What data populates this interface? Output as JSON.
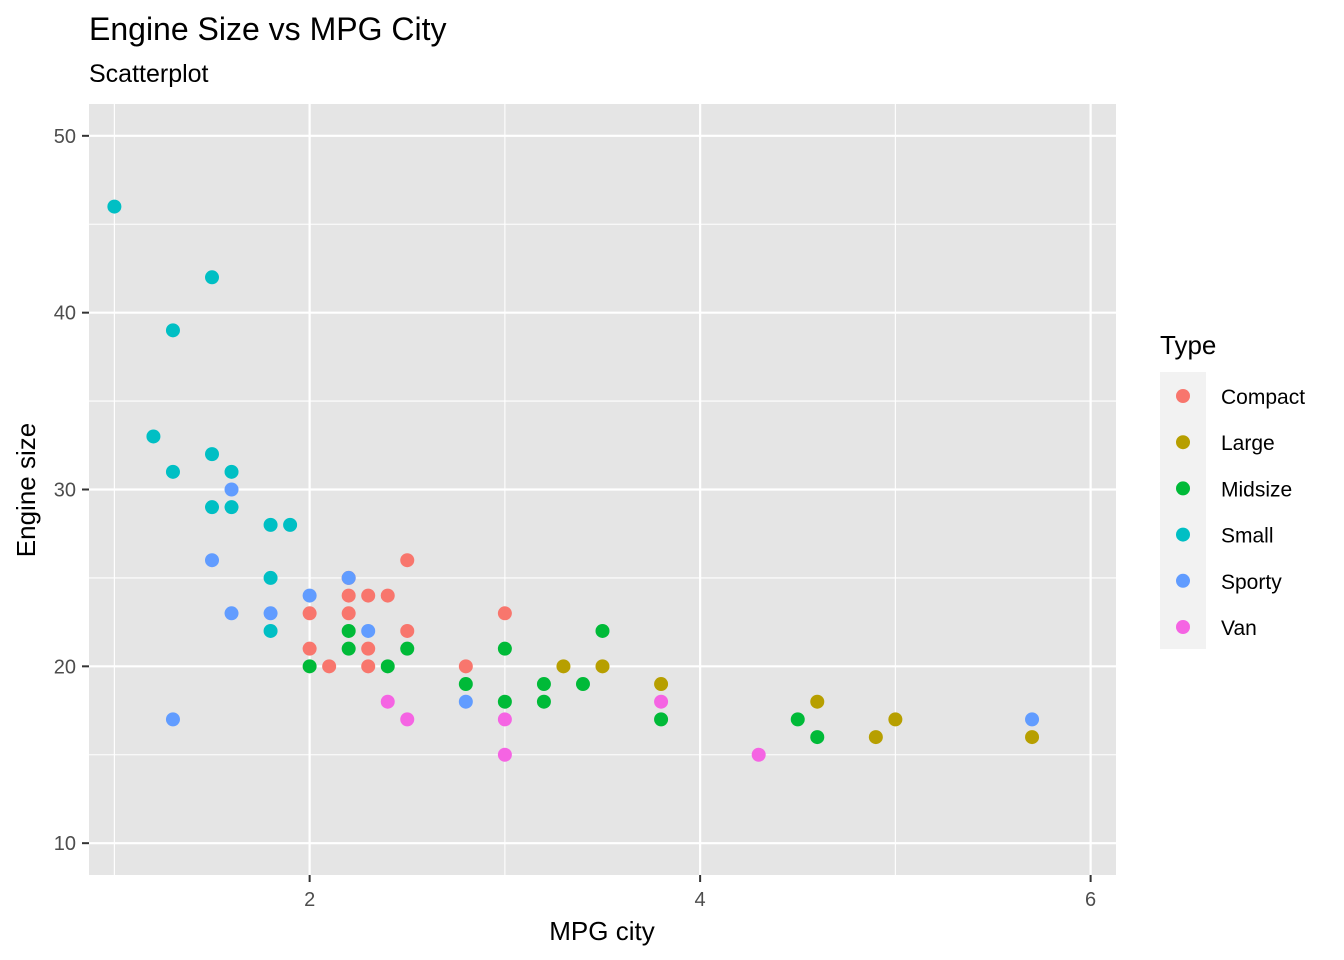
{
  "chart_data": {
    "type": "scatter",
    "title": "Engine Size vs MPG City",
    "subtitle": "Scatterplot",
    "xlabel": "MPG city",
    "ylabel": "Engine size",
    "xlim": [
      0.87,
      6.13
    ],
    "ylim": [
      8.2,
      51.8
    ],
    "x_ticks": [
      2,
      4,
      6
    ],
    "x_minor_ticks": [
      1,
      3,
      5
    ],
    "y_ticks": [
      10,
      20,
      30,
      40,
      50
    ],
    "y_minor_ticks": [
      15,
      25,
      35,
      45
    ],
    "grid": true,
    "legend_title": "Type",
    "legend_position": "right",
    "colors": {
      "panel_background": "#e5e5e5",
      "grid_line": "#ffffff",
      "tick_label": "#4d4d4d"
    },
    "series": [
      {
        "name": "Compact",
        "color": "#F8766D",
        "points": [
          [
            2.0,
            23
          ],
          [
            2.0,
            21
          ],
          [
            2.1,
            20
          ],
          [
            2.2,
            25
          ],
          [
            2.2,
            24
          ],
          [
            2.2,
            23
          ],
          [
            2.3,
            24
          ],
          [
            2.3,
            21
          ],
          [
            2.3,
            20
          ],
          [
            2.4,
            24
          ],
          [
            2.5,
            26
          ],
          [
            2.5,
            22
          ],
          [
            2.8,
            20
          ],
          [
            3.0,
            23
          ]
        ]
      },
      {
        "name": "Large",
        "color": "#B79F00",
        "points": [
          [
            3.3,
            20
          ],
          [
            3.5,
            20
          ],
          [
            3.8,
            19
          ],
          [
            4.6,
            18
          ],
          [
            4.9,
            16
          ],
          [
            5.0,
            17
          ],
          [
            5.7,
            16
          ]
        ]
      },
      {
        "name": "Midsize",
        "color": "#00BA38",
        "points": [
          [
            2.0,
            20
          ],
          [
            2.2,
            22
          ],
          [
            2.2,
            21
          ],
          [
            2.4,
            20
          ],
          [
            2.5,
            21
          ],
          [
            2.8,
            19
          ],
          [
            3.0,
            21
          ],
          [
            3.0,
            18
          ],
          [
            3.2,
            19
          ],
          [
            3.2,
            18
          ],
          [
            3.4,
            19
          ],
          [
            3.5,
            22
          ],
          [
            3.8,
            17
          ],
          [
            4.5,
            17
          ],
          [
            4.6,
            16
          ]
        ]
      },
      {
        "name": "Small",
        "color": "#00BFC4",
        "points": [
          [
            1.0,
            46
          ],
          [
            1.2,
            33
          ],
          [
            1.3,
            39
          ],
          [
            1.3,
            31
          ],
          [
            1.5,
            42
          ],
          [
            1.5,
            32
          ],
          [
            1.5,
            29
          ],
          [
            1.6,
            31
          ],
          [
            1.6,
            29
          ],
          [
            1.8,
            28
          ],
          [
            1.8,
            25
          ],
          [
            1.8,
            22
          ],
          [
            1.9,
            28
          ]
        ]
      },
      {
        "name": "Sporty",
        "color": "#619CFF",
        "points": [
          [
            1.3,
            17
          ],
          [
            1.5,
            26
          ],
          [
            1.6,
            30
          ],
          [
            1.6,
            23
          ],
          [
            1.8,
            23
          ],
          [
            2.0,
            24
          ],
          [
            2.2,
            25
          ],
          [
            2.3,
            22
          ],
          [
            2.8,
            18
          ],
          [
            5.7,
            17
          ]
        ]
      },
      {
        "name": "Van",
        "color": "#F564E3",
        "points": [
          [
            2.4,
            18
          ],
          [
            2.5,
            17
          ],
          [
            3.0,
            17
          ],
          [
            3.0,
            15
          ],
          [
            3.8,
            18
          ],
          [
            4.3,
            15
          ]
        ]
      }
    ]
  }
}
